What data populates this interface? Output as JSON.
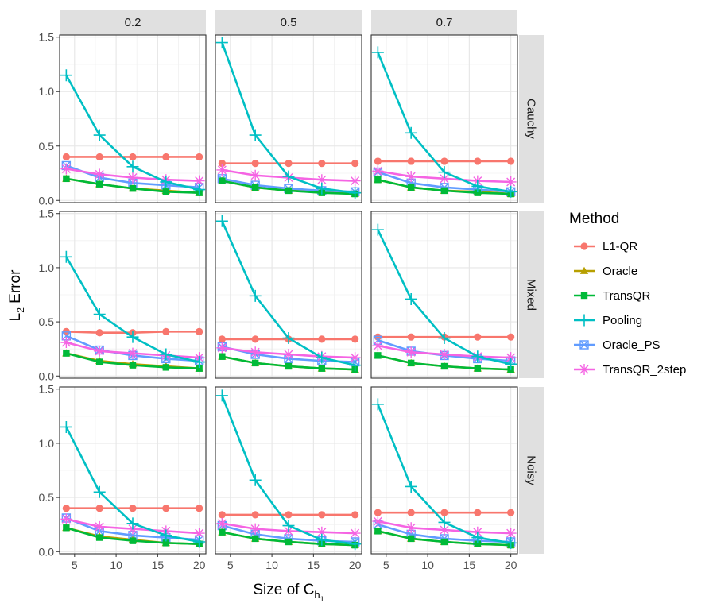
{
  "chart_data": {
    "type": "line",
    "ylabel_main": "L",
    "ylabel_sub": "2",
    "ylabel_rest": " Error",
    "xlabel_main": "Size of C",
    "xlabel_sub": "h",
    "xlabel_subsub": "1",
    "columns": [
      "0.2",
      "0.5",
      "0.7"
    ],
    "rows": [
      "Cauchy",
      "Mixed",
      "Noisy"
    ],
    "x": [
      4,
      8,
      12,
      16,
      20
    ],
    "x_ticks": [
      5,
      10,
      15,
      20
    ],
    "y_ticks": [
      0.0,
      0.5,
      1.0,
      1.5
    ],
    "y_tick_labels": [
      "0.0",
      "0.5",
      "1.0",
      "1.5"
    ],
    "xlim": [
      3.2,
      20.8
    ],
    "ylim": [
      -0.02,
      1.52
    ],
    "legend_title": "Method",
    "legend_position": "right",
    "series_styles": [
      {
        "name": "L1-QR",
        "color": "#F8766D",
        "shape": "circle"
      },
      {
        "name": "Oracle",
        "color": "#B79F00",
        "shape": "triangle"
      },
      {
        "name": "TransQR",
        "color": "#00BA38",
        "shape": "square"
      },
      {
        "name": "Pooling",
        "color": "#00BFC4",
        "shape": "plus"
      },
      {
        "name": "Oracle_PS",
        "color": "#619CFF",
        "shape": "boxcross"
      },
      {
        "name": "TransQR_2step",
        "color": "#F564E3",
        "shape": "asterisk"
      }
    ],
    "panels": [
      {
        "row": "Cauchy",
        "col": "0.2",
        "series": {
          "L1-QR": [
            0.4,
            0.4,
            0.4,
            0.4,
            0.4
          ],
          "Oracle": [
            0.2,
            0.15,
            0.11,
            0.09,
            0.07
          ],
          "TransQR": [
            0.2,
            0.15,
            0.11,
            0.08,
            0.07
          ],
          "Pooling": [
            1.15,
            0.6,
            0.31,
            0.17,
            0.1
          ],
          "Oracle_PS": [
            0.32,
            0.21,
            0.16,
            0.14,
            0.12
          ],
          "TransQR_2step": [
            0.29,
            0.24,
            0.21,
            0.19,
            0.18
          ]
        }
      },
      {
        "row": "Cauchy",
        "col": "0.5",
        "series": {
          "L1-QR": [
            0.34,
            0.34,
            0.34,
            0.34,
            0.34
          ],
          "Oracle": [
            0.18,
            0.12,
            0.09,
            0.08,
            0.06
          ],
          "TransQR": [
            0.18,
            0.12,
            0.09,
            0.07,
            0.06
          ],
          "Pooling": [
            1.45,
            0.6,
            0.22,
            0.11,
            0.07
          ],
          "Oracle_PS": [
            0.2,
            0.14,
            0.11,
            0.09,
            0.08
          ],
          "TransQR_2step": [
            0.28,
            0.23,
            0.21,
            0.19,
            0.18
          ]
        }
      },
      {
        "row": "Cauchy",
        "col": "0.7",
        "series": {
          "L1-QR": [
            0.36,
            0.36,
            0.36,
            0.36,
            0.36
          ],
          "Oracle": [
            0.19,
            0.12,
            0.09,
            0.08,
            0.06
          ],
          "TransQR": [
            0.19,
            0.12,
            0.09,
            0.07,
            0.06
          ],
          "Pooling": [
            1.36,
            0.62,
            0.26,
            0.13,
            0.08
          ],
          "Oracle_PS": [
            0.26,
            0.16,
            0.12,
            0.1,
            0.08
          ],
          "TransQR_2step": [
            0.27,
            0.22,
            0.2,
            0.18,
            0.17
          ]
        }
      },
      {
        "row": "Mixed",
        "col": "0.2",
        "series": {
          "L1-QR": [
            0.41,
            0.4,
            0.4,
            0.41,
            0.41
          ],
          "Oracle": [
            0.21,
            0.14,
            0.11,
            0.09,
            0.07
          ],
          "TransQR": [
            0.21,
            0.13,
            0.1,
            0.08,
            0.07
          ],
          "Pooling": [
            1.1,
            0.57,
            0.36,
            0.2,
            0.13
          ],
          "Oracle_PS": [
            0.37,
            0.24,
            0.19,
            0.16,
            0.14
          ],
          "TransQR_2step": [
            0.31,
            0.23,
            0.21,
            0.19,
            0.17
          ]
        }
      },
      {
        "row": "Mixed",
        "col": "0.5",
        "series": {
          "L1-QR": [
            0.34,
            0.34,
            0.34,
            0.34,
            0.34
          ],
          "Oracle": [
            0.18,
            0.12,
            0.09,
            0.07,
            0.06
          ],
          "TransQR": [
            0.18,
            0.12,
            0.09,
            0.07,
            0.06
          ],
          "Pooling": [
            1.43,
            0.74,
            0.35,
            0.17,
            0.1
          ],
          "Oracle_PS": [
            0.27,
            0.2,
            0.16,
            0.14,
            0.13
          ],
          "TransQR_2step": [
            0.26,
            0.22,
            0.2,
            0.18,
            0.17
          ]
        }
      },
      {
        "row": "Mixed",
        "col": "0.7",
        "series": {
          "L1-QR": [
            0.36,
            0.36,
            0.36,
            0.36,
            0.36
          ],
          "Oracle": [
            0.19,
            0.12,
            0.09,
            0.07,
            0.06
          ],
          "TransQR": [
            0.19,
            0.12,
            0.09,
            0.07,
            0.06
          ],
          "Pooling": [
            1.35,
            0.71,
            0.35,
            0.18,
            0.11
          ],
          "Oracle_PS": [
            0.33,
            0.23,
            0.19,
            0.16,
            0.14
          ],
          "TransQR_2step": [
            0.28,
            0.22,
            0.2,
            0.18,
            0.17
          ]
        }
      },
      {
        "row": "Noisy",
        "col": "0.2",
        "series": {
          "L1-QR": [
            0.4,
            0.4,
            0.4,
            0.4,
            0.4
          ],
          "Oracle": [
            0.22,
            0.14,
            0.11,
            0.08,
            0.07
          ],
          "TransQR": [
            0.22,
            0.13,
            0.1,
            0.08,
            0.07
          ],
          "Pooling": [
            1.15,
            0.55,
            0.26,
            0.15,
            0.09
          ],
          "Oracle_PS": [
            0.31,
            0.19,
            0.15,
            0.13,
            0.11
          ],
          "TransQR_2step": [
            0.3,
            0.23,
            0.21,
            0.19,
            0.17
          ]
        }
      },
      {
        "row": "Noisy",
        "col": "0.5",
        "series": {
          "L1-QR": [
            0.34,
            0.34,
            0.34,
            0.34,
            0.34
          ],
          "Oracle": [
            0.18,
            0.12,
            0.09,
            0.07,
            0.06
          ],
          "TransQR": [
            0.18,
            0.12,
            0.09,
            0.07,
            0.06
          ],
          "Pooling": [
            1.44,
            0.66,
            0.24,
            0.11,
            0.07
          ],
          "Oracle_PS": [
            0.24,
            0.16,
            0.12,
            0.1,
            0.09
          ],
          "TransQR_2step": [
            0.26,
            0.21,
            0.19,
            0.18,
            0.17
          ]
        }
      },
      {
        "row": "Noisy",
        "col": "0.7",
        "series": {
          "L1-QR": [
            0.36,
            0.36,
            0.36,
            0.36,
            0.36
          ],
          "Oracle": [
            0.19,
            0.12,
            0.09,
            0.07,
            0.06
          ],
          "TransQR": [
            0.19,
            0.12,
            0.09,
            0.07,
            0.06
          ],
          "Pooling": [
            1.36,
            0.6,
            0.27,
            0.13,
            0.08
          ],
          "Oracle_PS": [
            0.25,
            0.16,
            0.12,
            0.1,
            0.09
          ],
          "TransQR_2step": [
            0.28,
            0.22,
            0.2,
            0.18,
            0.17
          ]
        }
      }
    ]
  }
}
